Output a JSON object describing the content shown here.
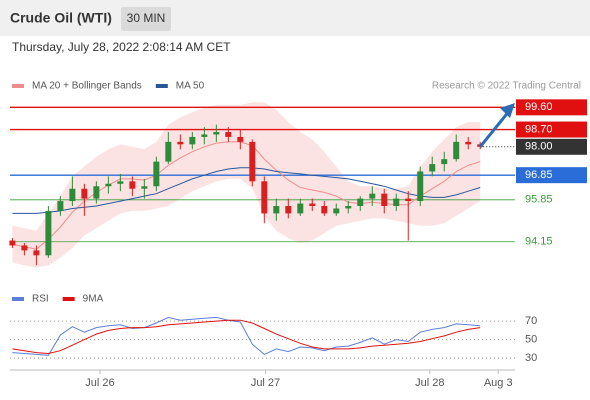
{
  "header": {
    "title": "Crude Oil (WTI)",
    "timeframe": "30 MIN",
    "timestamp": "Thursday, July 28, 2022 2:08:14 AM CET",
    "watermark": "Research © 2022 Trading Central"
  },
  "chart_data": [
    {
      "type": "candlestick",
      "xlim": [
        -0.2,
        41.9
      ],
      "ylim": [
        92.6,
        100.1
      ],
      "open": [
        94.2,
        94.0,
        93.8,
        93.6,
        95.4,
        95.8,
        96.3,
        95.9,
        96.4,
        96.5,
        96.6,
        96.3,
        96.4,
        97.4,
        98.2,
        98.1,
        98.4,
        98.5,
        98.6,
        98.4,
        98.2,
        96.6,
        95.3,
        95.6,
        95.3,
        95.7,
        95.6,
        95.3,
        95.5,
        95.6,
        95.9,
        96.1,
        95.6,
        95.9,
        95.8,
        97.0,
        97.3,
        97.5,
        98.2,
        98.1
      ],
      "high": [
        94.3,
        94.1,
        94.0,
        95.6,
        96.0,
        96.8,
        96.5,
        96.6,
        96.8,
        96.9,
        96.8,
        96.7,
        97.6,
        98.6,
        98.5,
        98.6,
        98.8,
        98.9,
        98.8,
        98.7,
        98.3,
        96.8,
        95.9,
        95.9,
        95.9,
        95.9,
        95.8,
        95.7,
        95.8,
        96.0,
        96.4,
        96.3,
        96.1,
        96.2,
        97.2,
        97.6,
        97.8,
        98.5,
        98.4,
        98.2
      ],
      "low": [
        93.9,
        93.6,
        93.2,
        93.5,
        95.2,
        95.6,
        95.2,
        95.7,
        96.1,
        96.2,
        96.0,
        95.9,
        96.2,
        97.3,
        97.9,
        97.9,
        98.1,
        98.2,
        98.2,
        97.9,
        96.4,
        94.9,
        95.0,
        95.1,
        95.2,
        95.4,
        95.2,
        95.2,
        95.3,
        95.4,
        95.6,
        95.3,
        95.4,
        94.2,
        95.6,
        96.8,
        97.0,
        97.4,
        97.9,
        97.9
      ],
      "close": [
        94.0,
        93.8,
        93.6,
        95.4,
        95.8,
        96.3,
        95.9,
        96.4,
        96.5,
        96.6,
        96.3,
        96.4,
        97.4,
        98.2,
        98.1,
        98.4,
        98.5,
        98.6,
        98.4,
        98.2,
        96.6,
        95.3,
        95.6,
        95.3,
        95.7,
        95.6,
        95.3,
        95.5,
        95.6,
        95.9,
        96.1,
        95.6,
        95.9,
        95.8,
        97.0,
        97.3,
        97.5,
        98.2,
        98.1,
        98.0
      ],
      "up_color": "#2e8b3a",
      "down_color": "#d92020",
      "series": [
        {
          "name": "MA 20 + Bollinger Bands",
          "color": "#f08c8c",
          "values": [
            94.05,
            93.95,
            93.85,
            94.25,
            94.75,
            95.35,
            95.8,
            96.15,
            96.45,
            96.7,
            96.7,
            96.65,
            96.85,
            97.25,
            97.55,
            97.8,
            98.0,
            98.15,
            98.2,
            98.2,
            98.05,
            97.5,
            97.05,
            96.65,
            96.35,
            96.25,
            96.15,
            96.0,
            95.75,
            95.7,
            95.75,
            95.7,
            95.65,
            95.65,
            96.0,
            96.3,
            96.6,
            97.0,
            97.25,
            97.4
          ],
          "upper": [
            94.8,
            94.7,
            94.6,
            95.3,
            96.0,
            96.8,
            97.2,
            97.6,
            97.9,
            98.1,
            98.0,
            97.9,
            98.2,
            98.9,
            99.2,
            99.4,
            99.6,
            99.7,
            99.7,
            99.7,
            99.8,
            99.8,
            99.5,
            99.0,
            98.6,
            98.3,
            97.8,
            97.2,
            96.6,
            96.4,
            96.4,
            96.3,
            96.3,
            96.4,
            97.2,
            97.8,
            98.3,
            98.8,
            99.0,
            99.0
          ],
          "lower": [
            93.3,
            93.2,
            93.1,
            93.2,
            93.5,
            93.9,
            94.4,
            94.7,
            95.0,
            95.3,
            95.4,
            95.4,
            95.5,
            95.6,
            95.9,
            96.2,
            96.4,
            96.6,
            96.7,
            96.7,
            96.3,
            95.2,
            94.6,
            94.3,
            94.1,
            94.2,
            94.5,
            94.8,
            94.9,
            95.0,
            95.1,
            95.1,
            95.0,
            94.9,
            94.8,
            94.8,
            94.9,
            95.2,
            95.5,
            95.8
          ]
        },
        {
          "name": "MA 50",
          "color": "#2a5599",
          "values": [
            95.3,
            95.3,
            95.3,
            95.35,
            95.4,
            95.5,
            95.55,
            95.6,
            95.7,
            95.8,
            95.9,
            96.0,
            96.1,
            96.3,
            96.5,
            96.7,
            96.85,
            97.0,
            97.1,
            97.15,
            97.15,
            97.1,
            97.0,
            96.95,
            96.9,
            96.85,
            96.8,
            96.75,
            96.7,
            96.6,
            96.5,
            96.4,
            96.25,
            96.1,
            96.0,
            95.95,
            95.95,
            96.05,
            96.2,
            96.35
          ]
        }
      ],
      "levels": [
        {
          "value": 99.6,
          "label": "99.60",
          "color": "#e01010",
          "boxed": true,
          "style": "solid"
        },
        {
          "value": 98.7,
          "label": "98.70",
          "color": "#e01010",
          "boxed": true,
          "style": "solid"
        },
        {
          "value": 98.0,
          "label": "98.00",
          "color": "#333333",
          "boxed": true,
          "style": "dotted"
        },
        {
          "value": 96.85,
          "label": "96.85",
          "color": "#2a6dd9",
          "boxed": true,
          "style": "solid"
        },
        {
          "value": 95.85,
          "label": "95.85",
          "color": "#3a9a3a",
          "boxed": false,
          "style": "solid"
        },
        {
          "value": 94.15,
          "label": "94.15",
          "color": "#3a9a3a",
          "boxed": false,
          "style": "solid"
        }
      ]
    },
    {
      "type": "line",
      "xlim": [
        -0.2,
        41.9
      ],
      "ylim": [
        15,
        82
      ],
      "yticks": [
        70,
        50,
        30
      ],
      "grid": true,
      "xticks": [
        {
          "value": 7.3,
          "label": "Jul 26"
        },
        {
          "value": 21.1,
          "label": "Jul 27"
        },
        {
          "value": 34.8,
          "label": "Jul 28"
        },
        {
          "value": 40.5,
          "label": "Aug 3"
        }
      ],
      "series": [
        {
          "name": "RSI",
          "color": "#5b7fd9",
          "values": [
            36,
            35,
            34,
            33,
            55,
            64,
            58,
            63,
            65,
            66,
            62,
            63,
            68,
            74,
            71,
            72,
            73,
            74,
            71,
            69,
            45,
            34,
            40,
            37,
            42,
            41,
            38,
            42,
            43,
            47,
            52,
            45,
            50,
            48,
            58,
            61,
            63,
            67,
            66,
            65
          ]
        },
        {
          "name": "9MA",
          "color": "#e01010",
          "values": [
            40,
            38,
            36,
            35,
            38,
            44,
            50,
            56,
            60,
            62,
            63,
            63,
            64,
            66,
            67,
            68,
            69,
            70,
            71,
            71,
            68,
            62,
            56,
            51,
            46,
            42,
            40,
            40,
            40,
            41,
            43,
            44,
            45,
            46,
            48,
            51,
            54,
            58,
            61,
            63
          ]
        }
      ]
    }
  ]
}
